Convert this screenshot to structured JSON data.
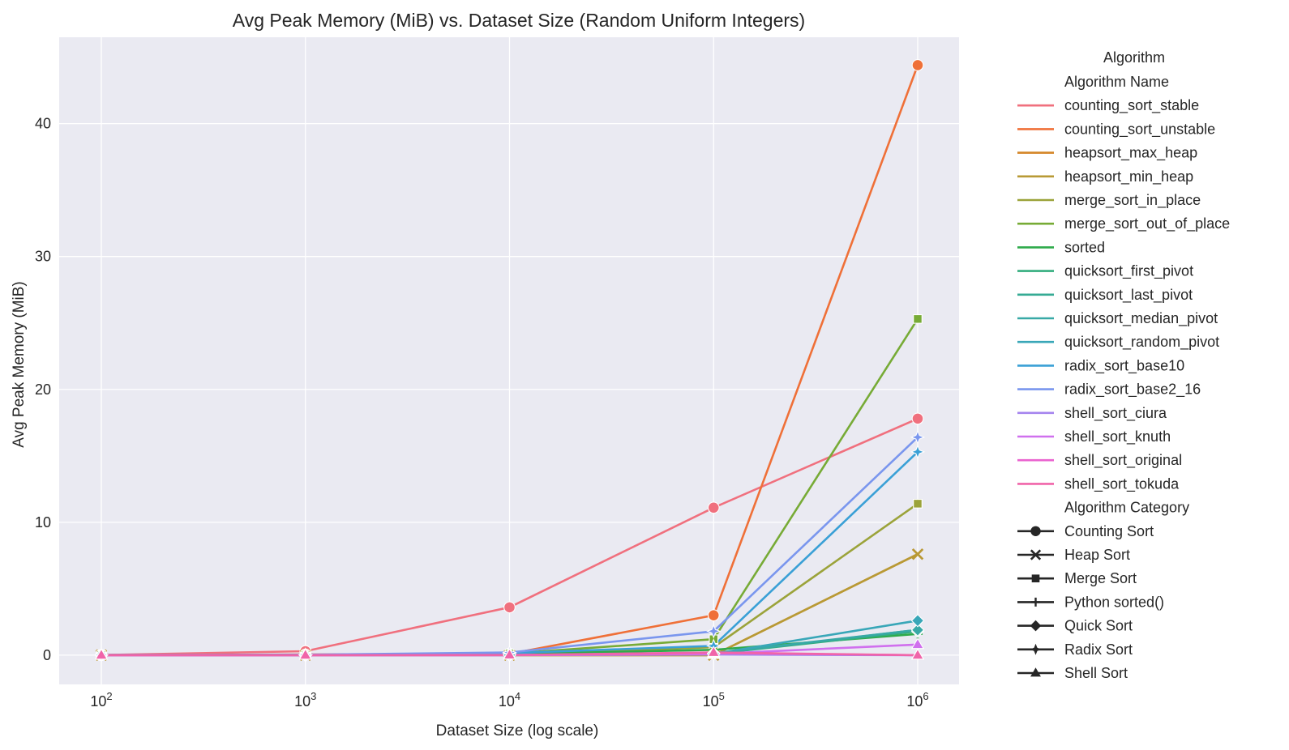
{
  "chart_data": {
    "type": "line",
    "title": "Avg Peak Memory (MiB) vs. Dataset Size (Random Uniform Integers)",
    "xlabel": "Dataset Size (log scale)",
    "ylabel": "Avg Peak Memory (MiB)",
    "xscale": "log",
    "x": [
      100,
      1000,
      10000,
      100000,
      1000000
    ],
    "x_ticks": [
      {
        "base": "10",
        "exp": "2"
      },
      {
        "base": "10",
        "exp": "3"
      },
      {
        "base": "10",
        "exp": "4"
      },
      {
        "base": "10",
        "exp": "5"
      },
      {
        "base": "10",
        "exp": "6"
      }
    ],
    "ylim": [
      -2.2,
      46.5
    ],
    "y_ticks": [
      0,
      10,
      20,
      30,
      40
    ],
    "grid": true,
    "background": "#eaeaf2",
    "legend": {
      "position": "right",
      "title": "Algorithm",
      "hue_title": "Algorithm Name",
      "style_title": "Algorithm Category",
      "categories": [
        {
          "name": "Counting Sort",
          "marker": "circle"
        },
        {
          "name": "Heap Sort",
          "marker": "x"
        },
        {
          "name": "Merge Sort",
          "marker": "square"
        },
        {
          "name": "Python sorted()",
          "marker": "plus"
        },
        {
          "name": "Quick Sort",
          "marker": "diamond"
        },
        {
          "name": "Radix Sort",
          "marker": "star"
        },
        {
          "name": "Shell Sort",
          "marker": "triangle"
        }
      ]
    },
    "series": [
      {
        "name": "counting_sort_stable",
        "category": "Counting Sort",
        "marker": "circle",
        "color": "#f0707e",
        "values": [
          0.01,
          0.3,
          3.6,
          11.1,
          17.8
        ]
      },
      {
        "name": "counting_sort_unstable",
        "category": "Counting Sort",
        "marker": "circle",
        "color": "#ef7038",
        "values": [
          0.01,
          0.05,
          0.1,
          3.0,
          44.4
        ]
      },
      {
        "name": "heapsort_max_heap",
        "category": "Heap Sort",
        "marker": "x",
        "color": "#d48527",
        "values": [
          0.0,
          0.0,
          0.0,
          0.0,
          7.6
        ]
      },
      {
        "name": "heapsort_min_heap",
        "category": "Heap Sort",
        "marker": "x",
        "color": "#b89a35",
        "values": [
          0.0,
          0.0,
          0.0,
          0.0,
          7.6
        ]
      },
      {
        "name": "merge_sort_in_place",
        "category": "Merge Sort",
        "marker": "square",
        "color": "#9ba33a",
        "values": [
          0.0,
          0.01,
          0.05,
          0.6,
          11.4
        ]
      },
      {
        "name": "merge_sort_out_of_place",
        "category": "Merge Sort",
        "marker": "square",
        "color": "#77ab36",
        "values": [
          0.01,
          0.02,
          0.12,
          1.2,
          25.3
        ]
      },
      {
        "name": "sorted",
        "category": "Python sorted()",
        "marker": "plus",
        "color": "#2eaa4a",
        "values": [
          0.0,
          0.01,
          0.08,
          0.4,
          1.6
        ]
      },
      {
        "name": "quicksort_first_pivot",
        "category": "Quick Sort",
        "marker": "diamond",
        "color": "#33ad7e",
        "values": [
          0.0,
          0.0,
          0.02,
          0.1,
          1.8
        ]
      },
      {
        "name": "quicksort_last_pivot",
        "category": "Quick Sort",
        "marker": "diamond",
        "color": "#36ab94",
        "values": [
          0.0,
          0.0,
          0.02,
          0.1,
          1.9
        ]
      },
      {
        "name": "quicksort_median_pivot",
        "category": "Quick Sort",
        "marker": "diamond",
        "color": "#38a9a6",
        "values": [
          0.0,
          0.0,
          0.02,
          0.15,
          1.9
        ]
      },
      {
        "name": "quicksort_random_pivot",
        "category": "Quick Sort",
        "marker": "diamond",
        "color": "#39a7b8",
        "values": [
          0.0,
          0.0,
          0.02,
          0.1,
          2.6
        ]
      },
      {
        "name": "radix_sort_base10",
        "category": "Radix Sort",
        "marker": "star",
        "color": "#3aa0d6",
        "values": [
          0.01,
          0.02,
          0.15,
          0.7,
          15.3
        ]
      },
      {
        "name": "radix_sort_base2_16",
        "category": "Radix Sort",
        "marker": "star",
        "color": "#7a96ee",
        "values": [
          0.01,
          0.03,
          0.2,
          1.8,
          16.4
        ]
      },
      {
        "name": "shell_sort_ciura",
        "category": "Shell Sort",
        "marker": "triangle",
        "color": "#a584ee",
        "values": [
          0.0,
          0.0,
          0.0,
          0.05,
          0.0
        ]
      },
      {
        "name": "shell_sort_knuth",
        "category": "Shell Sort",
        "marker": "triangle",
        "color": "#d070ee",
        "values": [
          0.0,
          0.0,
          0.0,
          0.1,
          0.8
        ]
      },
      {
        "name": "shell_sort_original",
        "category": "Shell Sort",
        "marker": "triangle",
        "color": "#ea63cf",
        "values": [
          0.0,
          0.0,
          0.01,
          0.15,
          0.0
        ]
      },
      {
        "name": "shell_sort_tokuda",
        "category": "Shell Sort",
        "marker": "triangle",
        "color": "#f065a9",
        "values": [
          0.0,
          0.0,
          0.01,
          0.2,
          0.0
        ]
      }
    ]
  }
}
